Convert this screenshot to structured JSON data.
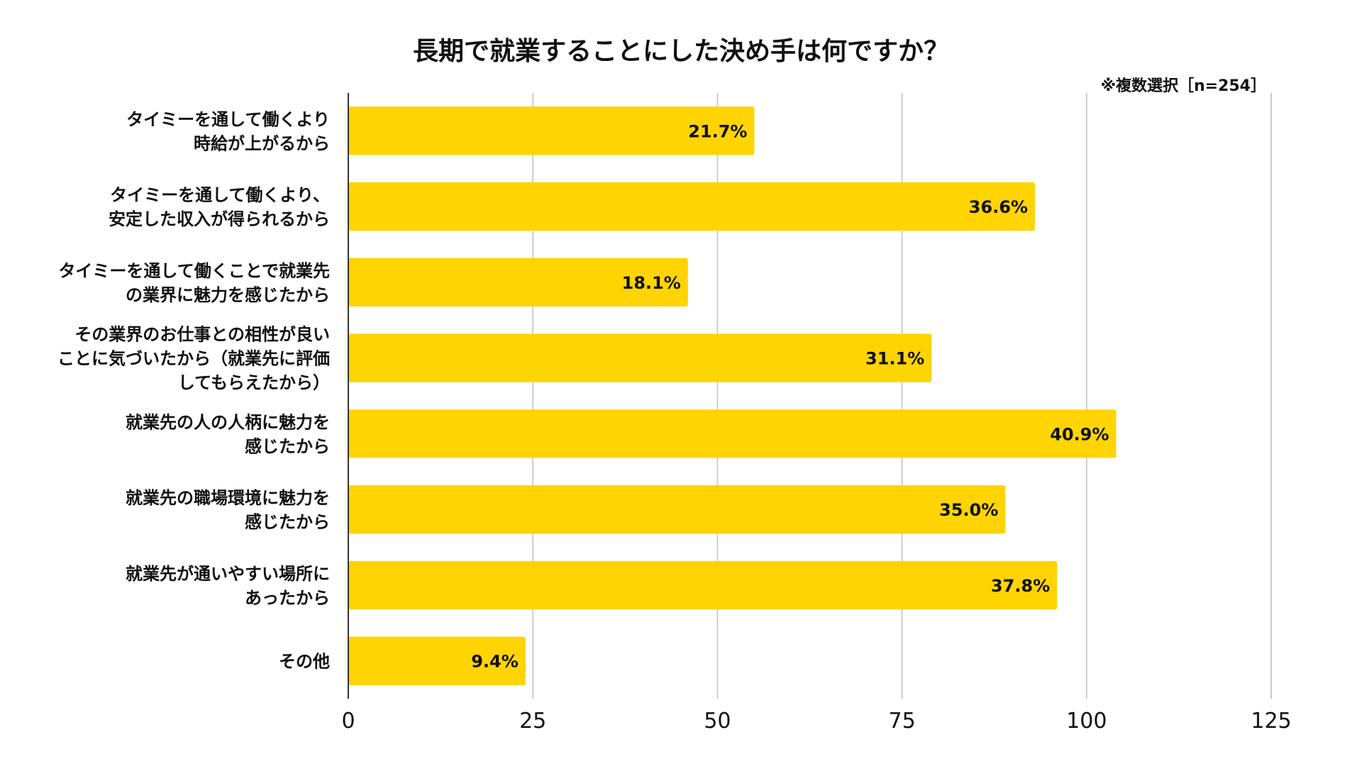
{
  "chart_data": {
    "type": "bar",
    "orientation": "horizontal",
    "title": "長期で就業することにした決め手は何ですか？",
    "note": "※複数選択［n=254］",
    "categories": [
      [
        "タイミーを通して働くより",
        "時給が上がるから"
      ],
      [
        "タイミーを通して働くより、",
        "安定した収入が得られるから"
      ],
      [
        "タイミーを通して働くことで就業先",
        "の業界に魅力を感じたから"
      ],
      [
        "その業界のお仕事との相性が良い",
        "ことに気づいたから（就業先に評価",
        "してもらえたから）"
      ],
      [
        "就業先の人の人柄に魅力を",
        "感じたから"
      ],
      [
        "就業先の職場環境に魅力を",
        "感じたから"
      ],
      [
        "就業先が通いやすい場所に",
        "あったから"
      ],
      [
        "その他"
      ]
    ],
    "values": [
      55,
      93,
      46,
      79,
      104,
      89,
      96,
      24
    ],
    "data_labels": [
      "21.7%",
      "36.6%",
      "18.1%",
      "31.1%",
      "40.9%",
      "35.0%",
      "37.8%",
      "9.4%"
    ],
    "x_ticks": [
      "0",
      "25",
      "50",
      "75",
      "100",
      "125"
    ],
    "xlim": [
      0,
      125
    ],
    "grid": true,
    "legend": "none",
    "colors": {
      "bar": "#FFD400",
      "grid": "#cccccc",
      "axis": "#333333",
      "text": "#111111"
    }
  }
}
